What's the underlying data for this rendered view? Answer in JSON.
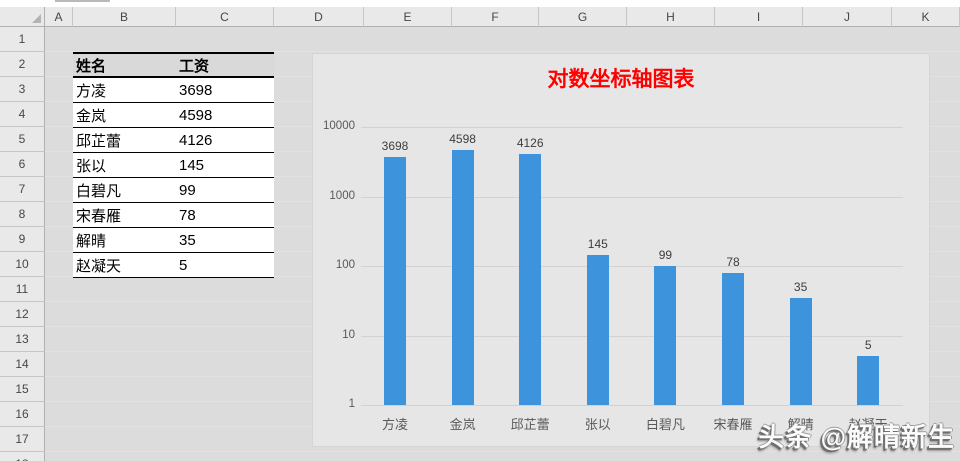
{
  "spreadsheet": {
    "column_labels": [
      "A",
      "B",
      "C",
      "D",
      "E",
      "F",
      "G",
      "H",
      "I",
      "J",
      "K"
    ],
    "row_labels": [
      "1",
      "2",
      "3",
      "4",
      "5",
      "6",
      "7",
      "8",
      "9",
      "10",
      "11",
      "12",
      "13",
      "14",
      "15",
      "16",
      "17",
      "18"
    ]
  },
  "table": {
    "headers": {
      "name": "姓名",
      "salary": "工资"
    },
    "rows": [
      {
        "name": "方凌",
        "salary": "3698"
      },
      {
        "name": "金岚",
        "salary": "4598"
      },
      {
        "name": "邱芷蕾",
        "salary": "4126"
      },
      {
        "name": "张以",
        "salary": "145"
      },
      {
        "name": "白碧凡",
        "salary": "99"
      },
      {
        "name": "宋春雁",
        "salary": "78"
      },
      {
        "name": "解晴",
        "salary": "35"
      },
      {
        "name": "赵凝天",
        "salary": "5"
      }
    ]
  },
  "chart_data": {
    "type": "bar",
    "title": "对数坐标轴图表",
    "title_color": "#ff0000",
    "categories": [
      "方凌",
      "金岚",
      "邱芷蕾",
      "张以",
      "白碧凡",
      "宋春雁",
      "解晴",
      "赵凝天"
    ],
    "values": [
      3698,
      4598,
      4126,
      145,
      99,
      78,
      35,
      5
    ],
    "y_ticks": [
      "10000",
      "1000",
      "100",
      "10",
      "1"
    ],
    "y_scale": "log",
    "ylim": [
      1,
      10000
    ],
    "bar_color": "#3e93dd",
    "plot_bg": "#e7e6e7",
    "grid": true,
    "legend": "none",
    "xlabel": "",
    "ylabel": ""
  },
  "watermark": {
    "text": "头条 @解晴新生"
  }
}
